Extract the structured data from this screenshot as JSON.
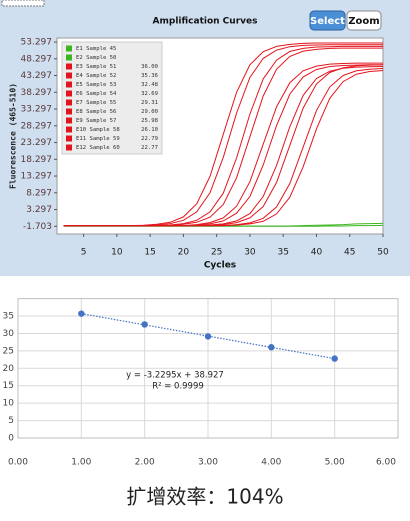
{
  "toolbar": {
    "buttons": [
      "Select",
      "Zoom"
    ]
  },
  "chart_data": [
    {
      "type": "line",
      "title": "Amplification Curves",
      "x_label": "Cycles",
      "y_label": "Fluorescence (465-510)",
      "xlim": [
        1,
        50
      ],
      "xticks": [
        5,
        10,
        15,
        20,
        25,
        30,
        35,
        40,
        45,
        50
      ],
      "ylim": [
        -4,
        54.5
      ],
      "yticks": [
        53.297,
        48.297,
        43.297,
        38.297,
        33.297,
        28.297,
        23.297,
        18.297,
        13.297,
        8.297,
        3.297,
        -1.703
      ],
      "x": [
        2,
        4,
        6,
        8,
        10,
        12,
        14,
        16,
        18,
        20,
        22,
        24,
        26,
        28,
        30,
        32,
        34,
        36,
        38,
        40,
        42,
        44,
        46,
        48,
        50
      ],
      "series": [
        {
          "name": "E1 Sample 45",
          "color": "#3cb521",
          "values": [
            -1.6,
            -1.6,
            -1.6,
            -1.6,
            -1.6,
            -1.6,
            -1.6,
            -1.6,
            -1.6,
            -1.6,
            -1.6,
            -1.6,
            -1.6,
            -1.6,
            -1.6,
            -1.6,
            -1.6,
            -1.6,
            -1.5,
            -1.4,
            -1.3,
            -1.2,
            -1.0,
            -0.9,
            -0.8
          ]
        },
        {
          "name": "E2 Sample 50",
          "color": "#3cb521",
          "values": [
            -1.7,
            -1.7,
            -1.7,
            -1.7,
            -1.7,
            -1.7,
            -1.7,
            -1.7,
            -1.7,
            -1.7,
            -1.7,
            -1.7,
            -1.7,
            -1.7,
            -1.7,
            -1.7,
            -1.7,
            -1.7,
            -1.7,
            -1.7,
            -1.6,
            -1.6,
            -1.5,
            -1.5,
            -1.4
          ]
        },
        {
          "name": "E3 Sample 51",
          "ct": "36.00",
          "color": "#e3141c",
          "values": [
            -1.5,
            -1.5,
            -1.5,
            -1.5,
            -1.5,
            -1.5,
            -1.5,
            -1.5,
            -1.5,
            -1.5,
            -1.5,
            -1.5,
            -1.5,
            -1.3,
            -1.0,
            -0.2,
            2.0,
            7.0,
            16.1,
            27.4,
            36.5,
            41.5,
            43.7,
            44.5,
            44.8
          ]
        },
        {
          "name": "E4 Sample 52",
          "ct": "35.36",
          "color": "#e3141c",
          "values": [
            -1.5,
            -1.5,
            -1.5,
            -1.5,
            -1.5,
            -1.5,
            -1.5,
            -1.5,
            -1.5,
            -1.5,
            -1.5,
            -1.5,
            -1.5,
            -1.2,
            -0.7,
            0.7,
            4.1,
            11.1,
            22.0,
            32.9,
            39.9,
            43.3,
            44.7,
            45.2,
            45.4
          ]
        },
        {
          "name": "E5 Sample 53",
          "ct": "32.48",
          "color": "#e3141c",
          "values": [
            -1.5,
            -1.5,
            -1.5,
            -1.5,
            -1.5,
            -1.5,
            -1.5,
            -1.5,
            -1.5,
            -1.5,
            -1.5,
            -1.3,
            -1.0,
            -0.1,
            2.1,
            7.2,
            16.5,
            28.1,
            37.4,
            42.4,
            44.6,
            45.5,
            45.8,
            45.9,
            46.0
          ]
        },
        {
          "name": "E6 Sample 54",
          "ct": "32.69",
          "color": "#e3141c",
          "values": [
            -1.5,
            -1.5,
            -1.5,
            -1.5,
            -1.5,
            -1.5,
            -1.5,
            -1.5,
            -1.5,
            -1.5,
            -1.5,
            -1.5,
            -1.2,
            -0.6,
            0.8,
            4.2,
            11.4,
            22.5,
            33.6,
            40.8,
            44.2,
            45.6,
            46.2,
            46.4,
            46.5
          ]
        },
        {
          "name": "E7 Sample 55",
          "ct": "29.31",
          "color": "#e3141c",
          "values": [
            -1.5,
            -1.5,
            -1.5,
            -1.5,
            -1.5,
            -1.5,
            -1.5,
            -1.5,
            -1.5,
            -1.5,
            -1.3,
            -1.0,
            -0.1,
            2.2,
            7.2,
            16.6,
            28.4,
            37.8,
            42.9,
            45.1,
            46.0,
            46.3,
            46.4,
            46.5,
            46.5
          ]
        },
        {
          "name": "E8 Sample 56",
          "ct": "29.00",
          "color": "#e3141c",
          "values": [
            -1.5,
            -1.5,
            -1.5,
            -1.5,
            -1.5,
            -1.5,
            -1.5,
            -1.5,
            -1.5,
            -1.5,
            -1.2,
            -0.6,
            0.8,
            4.3,
            11.6,
            22.8,
            34.0,
            41.2,
            44.7,
            46.1,
            46.7,
            46.9,
            47.0,
            47.0,
            47.0
          ]
        },
        {
          "name": "E9 Sample 57",
          "ct": "25.98",
          "color": "#e3141c",
          "values": [
            -1.5,
            -1.5,
            -1.5,
            -1.5,
            -1.5,
            -1.5,
            -1.5,
            -1.5,
            -1.3,
            -0.9,
            0.1,
            2.6,
            8.2,
            18.7,
            31.8,
            42.3,
            47.9,
            50.5,
            51.4,
            51.8,
            51.9,
            52.0,
            52.0,
            52.0,
            52.0
          ]
        },
        {
          "name": "E10 Sample 58",
          "ct": "26.10",
          "color": "#e3141c",
          "values": [
            -1.5,
            -1.5,
            -1.5,
            -1.5,
            -1.5,
            -1.5,
            -1.5,
            -1.5,
            -1.5,
            -1.1,
            -0.5,
            1.0,
            4.8,
            12.8,
            25.0,
            37.2,
            45.2,
            49.0,
            50.6,
            51.1,
            51.4,
            51.5,
            51.5,
            51.5,
            51.5
          ]
        },
        {
          "name": "E11 Sample 59",
          "ct": "22.79",
          "color": "#e3141c",
          "values": [
            -1.5,
            -1.5,
            -1.5,
            -1.5,
            -1.5,
            -1.5,
            -1.5,
            -1.3,
            -0.9,
            0.1,
            2.6,
            8.3,
            18.9,
            32.1,
            42.7,
            48.4,
            50.9,
            51.9,
            52.3,
            52.4,
            52.5,
            52.5,
            52.5,
            52.5,
            52.5
          ]
        },
        {
          "name": "E12 Sample 60",
          "ct": "22.77",
          "color": "#e3141c",
          "values": [
            -1.5,
            -1.5,
            -1.5,
            -1.5,
            -1.5,
            -1.5,
            -1.4,
            -1.1,
            -0.5,
            1.1,
            5.0,
            13.2,
            25.8,
            38.3,
            46.5,
            50.4,
            52.0,
            52.6,
            52.9,
            53.0,
            53.0,
            53.0,
            53.0,
            53.0,
            53.0
          ]
        }
      ]
    },
    {
      "type": "scatter",
      "color": "#4472c4",
      "grid": true,
      "xlim": [
        0,
        6
      ],
      "xticks": [
        {
          "value": 0,
          "label": "0.00"
        },
        {
          "value": 1,
          "label": "1.00"
        },
        {
          "value": 2,
          "label": "2.00"
        },
        {
          "value": 3,
          "label": "3.00"
        },
        {
          "value": 4,
          "label": "4.00"
        },
        {
          "value": 5,
          "label": "5.00"
        },
        {
          "value": 6,
          "label": "6.00"
        }
      ],
      "ylim": [
        0,
        40
      ],
      "yticks": [
        0,
        5,
        10,
        15,
        20,
        25,
        30,
        35
      ],
      "x": [
        1,
        2,
        3,
        4,
        5
      ],
      "values": [
        35.68,
        32.585,
        29.155,
        26.04,
        22.78
      ],
      "trendline": {
        "slope": -3.2295,
        "intercept": 38.927,
        "equation": "y = -3.2295x + 38.927",
        "r_squared": "R² = 0.9999"
      }
    }
  ],
  "caption": "扩增效率：104%"
}
